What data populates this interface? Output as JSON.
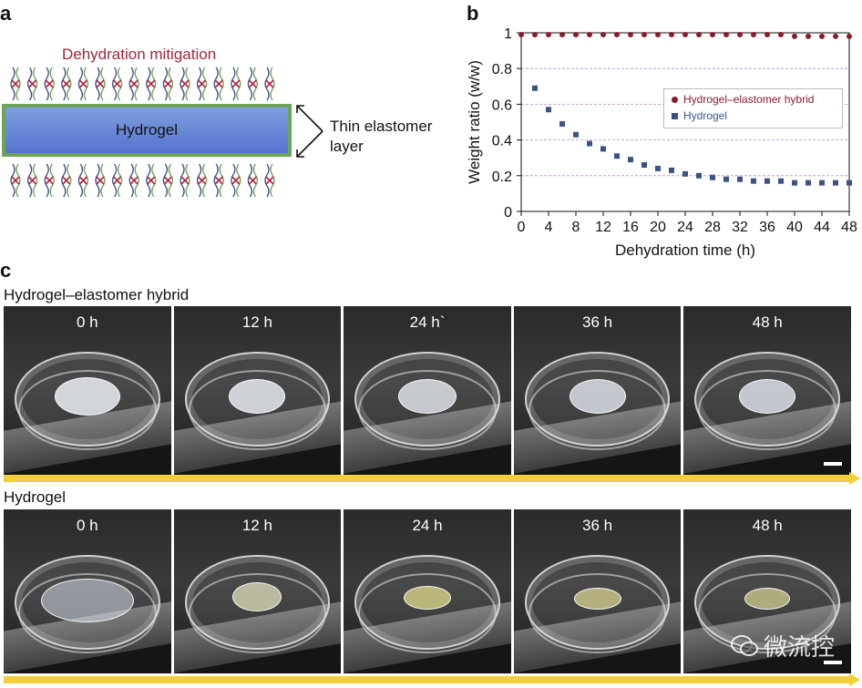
{
  "panel_a": {
    "letter": "a",
    "title": "Dehydration mitigation",
    "box_label": "Hydrogel",
    "side_label_line1": "Thin elastomer",
    "side_label_line2": "layer"
  },
  "panel_b": {
    "letter": "b"
  },
  "chart_data": {
    "type": "scatter",
    "title": "",
    "xlabel": "Dehydration time (h)",
    "ylabel": "Weight ratio (w/w)",
    "xlim": [
      0,
      48
    ],
    "ylim": [
      0,
      1
    ],
    "xticks": [
      0,
      4,
      8,
      12,
      16,
      20,
      24,
      28,
      32,
      36,
      40,
      44,
      48
    ],
    "yticks": [
      0,
      0.2,
      0.4,
      0.6,
      0.8,
      1
    ],
    "yticklabels": [
      "0",
      "0.2",
      "0.4",
      "0.6",
      "0.8",
      "1"
    ],
    "grid": "horizontal dashed",
    "legend_position": "center-right",
    "series": [
      {
        "name": "Hydrogel–elastomer hybrid",
        "marker": "circle",
        "color": "#8b1a2b",
        "x": [
          0,
          2,
          4,
          6,
          8,
          10,
          12,
          14,
          16,
          18,
          20,
          22,
          24,
          26,
          28,
          30,
          32,
          34,
          36,
          38,
          40,
          42,
          44,
          46,
          48
        ],
        "y": [
          0.99,
          0.99,
          0.99,
          0.99,
          0.99,
          0.99,
          0.99,
          0.99,
          0.99,
          0.99,
          0.99,
          0.99,
          0.99,
          0.99,
          0.99,
          0.99,
          0.99,
          0.99,
          0.99,
          0.99,
          0.98,
          0.98,
          0.98,
          0.98,
          0.98
        ]
      },
      {
        "name": "Hydrogel",
        "marker": "square",
        "color": "#3a5288",
        "x": [
          2,
          4,
          6,
          8,
          10,
          12,
          14,
          16,
          18,
          20,
          22,
          24,
          26,
          28,
          30,
          32,
          34,
          36,
          38,
          40,
          42,
          44,
          46,
          48
        ],
        "y": [
          0.69,
          0.57,
          0.49,
          0.43,
          0.38,
          0.35,
          0.31,
          0.29,
          0.26,
          0.24,
          0.23,
          0.21,
          0.2,
          0.19,
          0.18,
          0.18,
          0.17,
          0.17,
          0.17,
          0.16,
          0.16,
          0.16,
          0.16,
          0.16
        ]
      }
    ]
  },
  "panel_c": {
    "letter": "c",
    "rows": [
      {
        "title": "Hydrogel–elastomer hybrid",
        "times": [
          "0 h",
          "12 h",
          "24 h`",
          "36 h",
          "48 h"
        ]
      },
      {
        "title": "Hydrogel",
        "times": [
          "0 h",
          "12 h",
          "24 h",
          "36 h",
          "48 h"
        ]
      }
    ],
    "watermark": "微流控"
  },
  "colors": {
    "hybrid": "#8b1a2b",
    "hydrogel": "#3a5288",
    "title_red": "#a0283a",
    "arrow_yellow": "#f3cf3b"
  }
}
